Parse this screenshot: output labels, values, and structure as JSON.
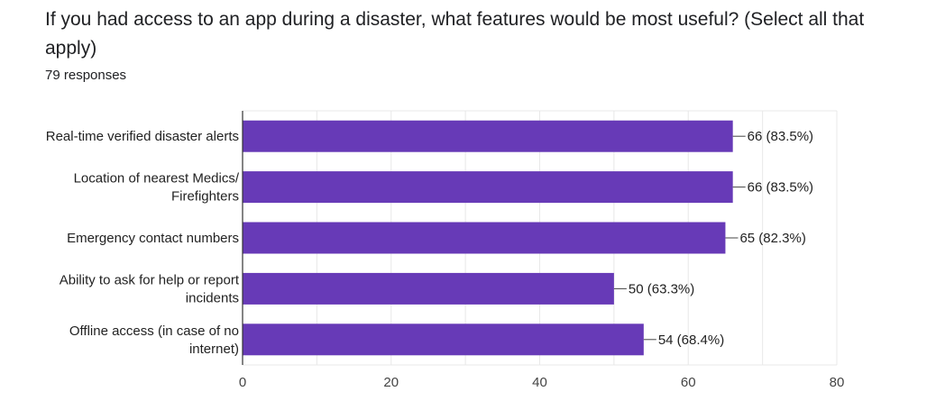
{
  "question": {
    "title": "If you had access to an app during a disaster, what features would be most useful? (Select all that apply)",
    "responses": "79 responses"
  },
  "chart_data": {
    "type": "bar",
    "orientation": "horizontal",
    "categories": [
      [
        "Real-time verified disaster alerts"
      ],
      [
        "Location of nearest Medics/",
        "Firefighters"
      ],
      [
        "Emergency contact numbers"
      ],
      [
        "Ability to ask for help or report",
        "incidents"
      ],
      [
        "Offline access (in case of no",
        "internet)"
      ]
    ],
    "values": [
      66,
      66,
      65,
      50,
      54
    ],
    "data_labels": [
      "66 (83.5%)",
      "66 (83.5%)",
      "65 (82.3%)",
      "50 (63.3%)",
      "54 (68.4%)"
    ],
    "xlim": [
      0,
      80
    ],
    "xticks": [
      0,
      20,
      40,
      60,
      80
    ],
    "grid": true,
    "bar_color": "#673ab7",
    "grid_color": "#e8e8e8",
    "axis_color": "#333333"
  }
}
